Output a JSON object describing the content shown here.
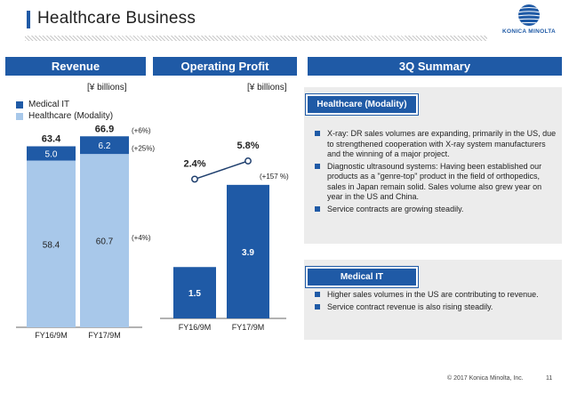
{
  "header": {
    "title": "Healthcare Business",
    "logo_text": "KONICA MINOLTA"
  },
  "tabs": {
    "revenue": "Revenue",
    "operating_profit": "Operating Profit",
    "summary": "3Q Summary"
  },
  "units": {
    "revenue": "[¥ billions]",
    "profit": "[¥ billions]"
  },
  "legend": {
    "items": [
      {
        "label": "Medical IT",
        "color": "#1f5aa6"
      },
      {
        "label": "Healthcare (Modality)",
        "color": "#a8c8ea"
      }
    ]
  },
  "chart_data": [
    {
      "type": "bar",
      "categories": [
        "FY16/9M",
        "FY17/9M"
      ],
      "series": [
        {
          "name": "Healthcare (Modality)",
          "values": [
            58.4,
            60.7
          ],
          "color": "#a8c8ea"
        },
        {
          "name": "Medical IT",
          "values": [
            5.0,
            6.2
          ],
          "color": "#1f5aa6"
        }
      ],
      "totals": [
        "63.4",
        "66.9"
      ],
      "segment_labels": {
        "modality": [
          "58.4",
          "60.7"
        ],
        "medical_it": [
          "5.0",
          "6.2"
        ]
      },
      "growth": {
        "total": "(+6%)",
        "medical_it": "(+25%)",
        "modality": "(+4%)"
      },
      "ylim": [
        0,
        70
      ]
    },
    {
      "type": "bar",
      "categories": [
        "FY16/9M",
        "FY17/9M"
      ],
      "values": [
        1.5,
        3.9
      ],
      "value_labels": [
        "1.5",
        "3.9"
      ],
      "growth": "(+157 %)",
      "margin_line": {
        "values": [
          2.4,
          5.8
        ],
        "labels": [
          "2.4%",
          "5.8%"
        ]
      },
      "ylim": [
        0,
        6
      ],
      "color": "#1f5aa6"
    }
  ],
  "summary": {
    "modality": {
      "heading": "Healthcare (Modality)",
      "bullets": [
        "X-ray: DR sales volumes are expanding, primarily in the US, due to strengthened cooperation with X-ray system manufacturers and the winning of a major project.",
        "Diagnostic ultrasound systems: Having been established our products as a \"genre-top\" product in the field of orthopedics, sales in Japan remain solid. Sales volume also grew year on year in the US and China.",
        "Service contracts are growing steadily."
      ]
    },
    "medical_it": {
      "heading": "Medical IT",
      "bullets": [
        "Higher sales volumes in the US are contributing to revenue.",
        "Service contract revenue is also rising steadily."
      ]
    }
  },
  "footer": {
    "copyright": "© 2017 Konica Minolta, Inc.",
    "page": "11"
  }
}
